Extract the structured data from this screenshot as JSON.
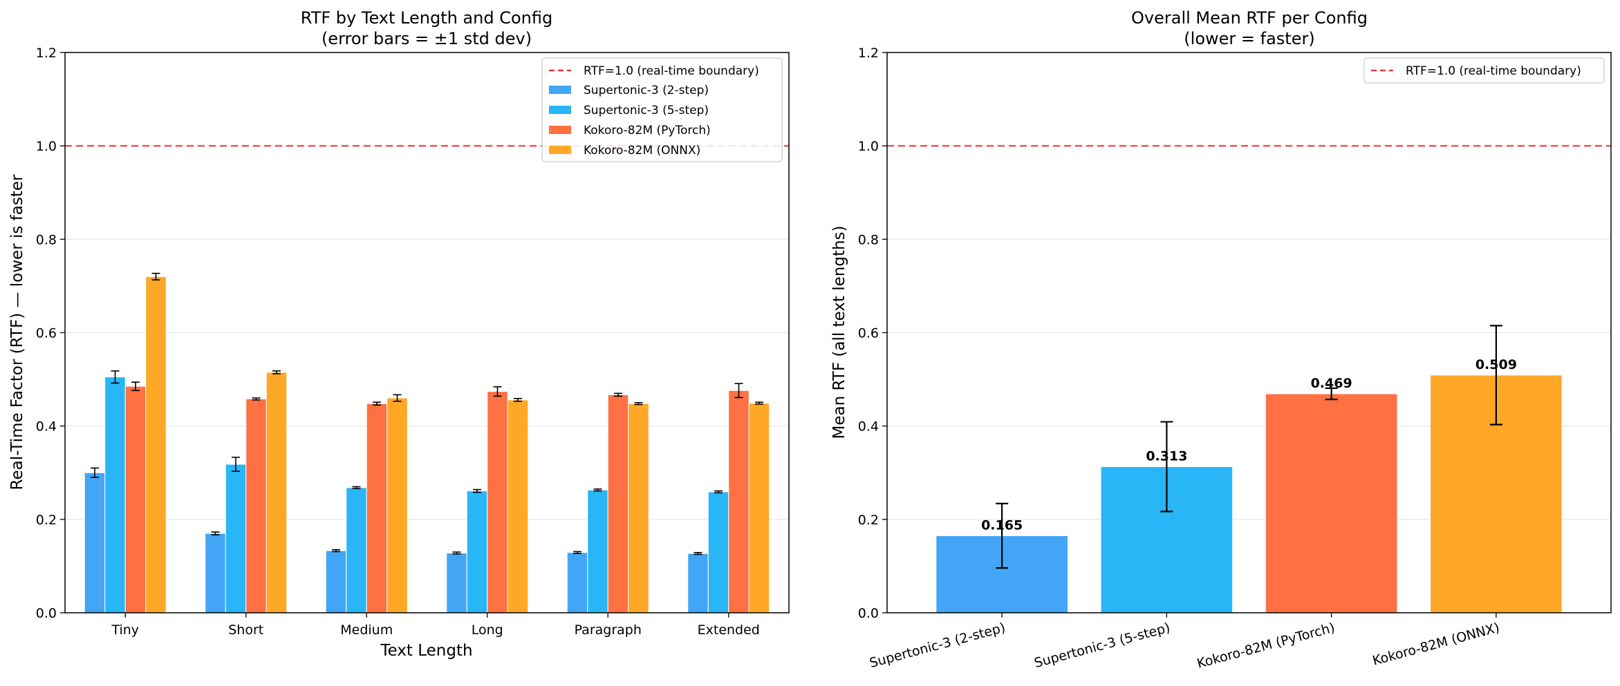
{
  "colors": {
    "supertonic_2step": "#42A5F5",
    "supertonic_5step": "#29B6F6",
    "kokoro_pytorch": "#FF7043",
    "kokoro_onnx": "#FFA726",
    "realtime_line": "#E53935"
  },
  "chart_data": [
    {
      "type": "bar",
      "title": "RTF by Text Length and Config",
      "subtitle": "(error bars = ±1 std dev)",
      "xlabel": "Text Length",
      "ylabel": "Real-Time Factor (RTF) — lower is faster",
      "ylim": [
        0,
        1.2
      ],
      "yticks": [
        "0.0",
        "0.2",
        "0.4",
        "0.6",
        "0.8",
        "1.0",
        "1.2"
      ],
      "grid": "y",
      "legend_position": "top-right",
      "reference_line": {
        "y": 1.0,
        "label": "RTF=1.0 (real-time boundary)"
      },
      "categories": [
        "Tiny",
        "Short",
        "Medium",
        "Long",
        "Paragraph",
        "Extended"
      ],
      "series": [
        {
          "name": "Supertonic-3 (2-step)",
          "color_key": "supertonic_2step",
          "values": [
            0.3,
            0.17,
            0.133,
            0.128,
            0.129,
            0.127
          ],
          "errors": [
            0.01,
            0.003,
            0.002,
            0.002,
            0.002,
            0.002
          ]
        },
        {
          "name": "Supertonic-3 (5-step)",
          "color_key": "supertonic_5step",
          "values": [
            0.505,
            0.318,
            0.268,
            0.261,
            0.263,
            0.259
          ],
          "errors": [
            0.013,
            0.015,
            0.002,
            0.003,
            0.002,
            0.002
          ]
        },
        {
          "name": "Kokoro-82M (PyTorch)",
          "color_key": "kokoro_pytorch",
          "values": [
            0.485,
            0.458,
            0.448,
            0.474,
            0.467,
            0.476
          ],
          "errors": [
            0.009,
            0.002,
            0.003,
            0.01,
            0.003,
            0.015
          ]
        },
        {
          "name": "Kokoro-82M (ONNX)",
          "color_key": "kokoro_onnx",
          "values": [
            0.72,
            0.515,
            0.46,
            0.456,
            0.448,
            0.449
          ],
          "errors": [
            0.007,
            0.003,
            0.007,
            0.003,
            0.002,
            0.002
          ]
        }
      ]
    },
    {
      "type": "bar",
      "title": "Overall Mean RTF per Config",
      "subtitle": "(lower = faster)",
      "xlabel": "",
      "ylabel": "Mean RTF (all text lengths)",
      "ylim": [
        0,
        1.2
      ],
      "yticks": [
        "0.0",
        "0.2",
        "0.4",
        "0.6",
        "0.8",
        "1.0",
        "1.2"
      ],
      "grid": "y",
      "legend_position": "top-right",
      "reference_line": {
        "y": 1.0,
        "label": "RTF=1.0 (real-time boundary)"
      },
      "categories": [
        "Supertonic-3 (2-step)",
        "Supertonic-3 (5-step)",
        "Kokoro-82M (PyTorch)",
        "Kokoro-82M (ONNX)"
      ],
      "color_keys": [
        "supertonic_2step",
        "supertonic_5step",
        "kokoro_pytorch",
        "kokoro_onnx"
      ],
      "values": [
        0.165,
        0.313,
        0.469,
        0.509
      ],
      "value_labels": [
        "0.165",
        "0.313",
        "0.469",
        "0.509"
      ],
      "errors": [
        0.069,
        0.096,
        0.012,
        0.106
      ]
    }
  ]
}
